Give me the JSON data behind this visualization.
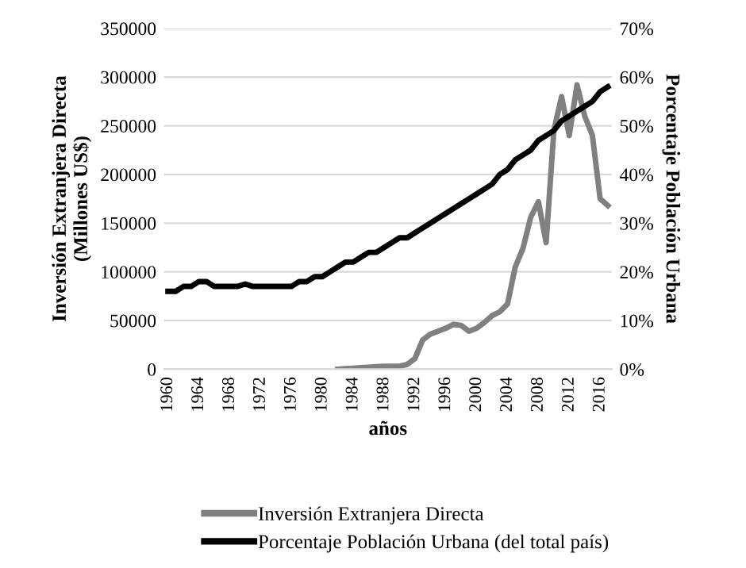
{
  "chart_data": {
    "type": "line",
    "xlabel": "años",
    "ylabel": "Inversión Extranjera Directa\n(Millones US$)",
    "y2label": "Porcentaje Población Urbana",
    "categories": [
      "1960",
      null,
      null,
      null,
      "1964",
      null,
      null,
      null,
      "1968",
      null,
      null,
      null,
      "1972",
      null,
      null,
      null,
      "1976",
      null,
      null,
      null,
      "1980",
      null,
      null,
      null,
      "1984",
      null,
      null,
      null,
      "1988",
      null,
      null,
      null,
      "1992",
      null,
      null,
      null,
      "1996",
      null,
      null,
      null,
      "2000",
      null,
      null,
      null,
      "2004",
      null,
      null,
      null,
      "2008",
      null,
      null,
      null,
      "2012",
      null,
      null,
      null,
      "2016",
      null
    ],
    "series": [
      {
        "name": "Inversión Extranjera Directa",
        "color": "#808080",
        "values": [
          null,
          null,
          null,
          null,
          null,
          null,
          null,
          null,
          null,
          null,
          null,
          null,
          null,
          null,
          null,
          null,
          null,
          null,
          null,
          null,
          null,
          null,
          0,
          500,
          1000,
          1500,
          2000,
          2500,
          3000,
          3000,
          3000,
          5000,
          11000,
          30000,
          36000,
          39000,
          42000,
          46000,
          45000,
          39000,
          42000,
          48000,
          55000,
          59000,
          67000,
          105000,
          124000,
          156000,
          172000,
          130000,
          245000,
          280000,
          240000,
          292000,
          260000,
          240000,
          175000,
          168000
        ]
      },
      {
        "name": "Porcentaje Población Urbana (del total país)",
        "color": "#000000",
        "axis": "y2",
        "values": [
          16,
          16,
          17,
          17,
          18,
          18,
          17,
          17,
          17,
          17,
          17.5,
          17,
          17,
          17,
          17,
          17,
          17,
          18,
          18,
          19,
          19,
          20,
          21,
          22,
          22,
          23,
          24,
          24,
          25,
          26,
          27,
          27,
          28,
          29,
          30,
          31,
          32,
          33,
          34,
          35,
          36,
          37,
          38,
          40,
          41,
          43,
          44,
          45,
          47,
          48,
          49,
          51,
          52,
          53,
          54,
          55,
          57,
          58
        ]
      }
    ],
    "ylim": [
      0,
      350000
    ],
    "yticks": [
      0,
      50000,
      100000,
      150000,
      200000,
      250000,
      300000,
      350000
    ],
    "y2lim": [
      0,
      70
    ],
    "y2ticks": [
      {
        "value": 0,
        "label": "0%"
      },
      {
        "value": 10,
        "label": "10%"
      },
      {
        "value": 20,
        "label": "20%"
      },
      {
        "value": 30,
        "label": "30%"
      },
      {
        "value": 40,
        "label": "40%"
      },
      {
        "value": 50,
        "label": "50%"
      },
      {
        "value": 60,
        "label": "60%"
      },
      {
        "value": 70,
        "label": "70%"
      }
    ],
    "grid": "y",
    "legend": "bottom",
    "marker": "none",
    "line_style": "solid"
  }
}
